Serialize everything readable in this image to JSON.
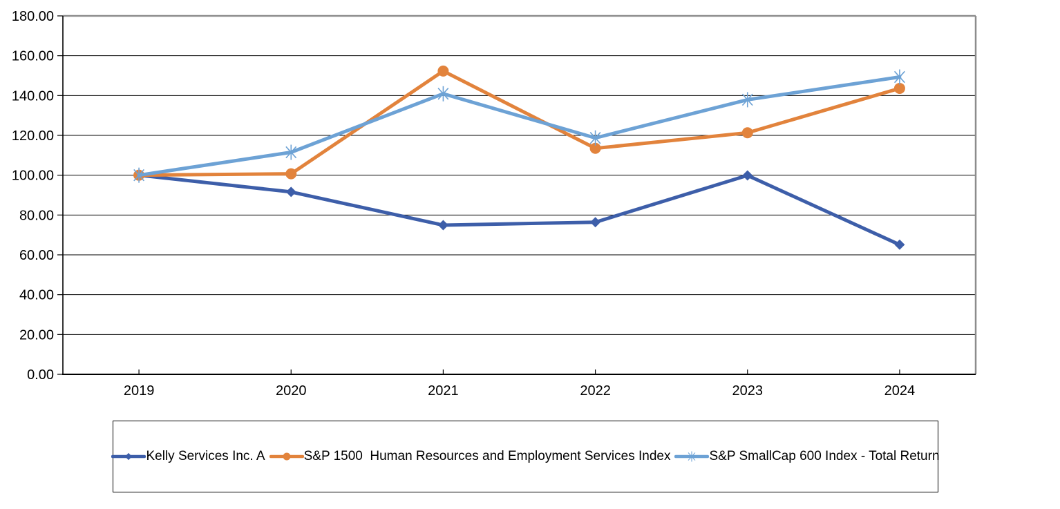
{
  "chart_data": {
    "type": "line",
    "categories": [
      "2019",
      "2020",
      "2021",
      "2022",
      "2023",
      "2024"
    ],
    "series": [
      {
        "name": "Kelly Services Inc. A",
        "values": [
          100.0,
          91.6,
          74.9,
          76.4,
          99.9,
          65.1
        ],
        "color": "#3D5EA9",
        "marker": "diamond"
      },
      {
        "name": "S&P 1500  Human Resources and Employment Services Index",
        "values": [
          100.0,
          100.7,
          152.3,
          113.5,
          121.3,
          143.6
        ],
        "color": "#E2833C",
        "marker": "circle"
      },
      {
        "name": "S&P SmallCap 600 Index - Total Return",
        "values": [
          100.0,
          111.5,
          140.9,
          118.7,
          137.9,
          149.3
        ],
        "color": "#6DA2D5",
        "marker": "star"
      }
    ],
    "title": "",
    "xlabel": "",
    "ylabel": "",
    "ylim": [
      0,
      180
    ],
    "ytick_step": 20,
    "ytick_decimals": 2,
    "grid": "horizontal",
    "legend_position": "bottom",
    "colors": {
      "axis": "#000000",
      "gridline": "#000000",
      "plot_border": "#8C8C8C",
      "legend_border": "#000000",
      "background": "#FFFFFF"
    }
  }
}
